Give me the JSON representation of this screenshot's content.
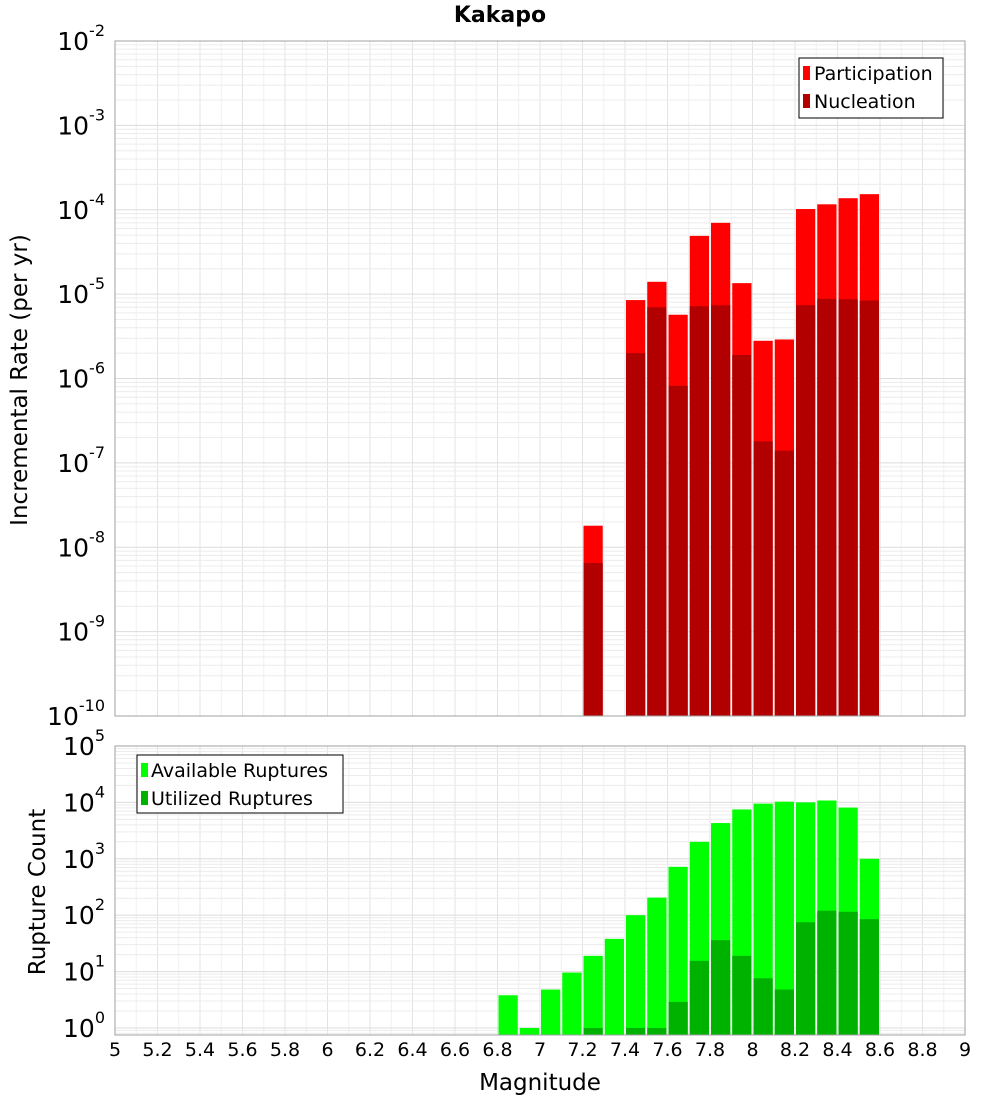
{
  "chart_data": [
    {
      "type": "bar",
      "title": "Kakapo",
      "xlabel": "",
      "ylabel": "Incremental Rate (per yr)",
      "y_scale": "log",
      "ylim": [
        1e-10,
        0.01
      ],
      "xlim": [
        5,
        9
      ],
      "bin_width": 0.1,
      "grid": true,
      "legend_position": "top-right",
      "y_tick_exponents": [
        "-10",
        "-9",
        "-8",
        "-7",
        "-6",
        "-5",
        "-4",
        "-3",
        "-2"
      ],
      "x": [
        7.25,
        7.45,
        7.55,
        7.65,
        7.75,
        7.85,
        7.95,
        8.05,
        8.15,
        8.25,
        8.35,
        8.45,
        8.55
      ],
      "series": [
        {
          "name": "Participation",
          "color": "#ff0000",
          "values": [
            1.8e-08,
            8.5e-06,
            1.4e-05,
            5.7e-06,
            4.9e-05,
            7e-05,
            1.35e-05,
            2.8e-06,
            2.9e-06,
            0.000102,
            0.000116,
            0.000137,
            0.000153
          ]
        },
        {
          "name": "Nucleation",
          "color": "#b20000",
          "values": [
            6.5e-09,
            2e-06,
            7e-06,
            8.2e-07,
            7.2e-06,
            7.4e-06,
            1.9e-06,
            1.8e-07,
            1.4e-07,
            7.4e-06,
            8.8e-06,
            8.7e-06,
            8.4e-06
          ]
        }
      ]
    },
    {
      "type": "bar",
      "title": "",
      "xlabel": "Magnitude",
      "ylabel": "Rupture Count",
      "y_scale": "log",
      "ylim": [
        0.75,
        100000.0
      ],
      "xlim": [
        5,
        9
      ],
      "bin_width": 0.1,
      "grid": true,
      "legend_position": "top-left",
      "y_tick_exponents": [
        "0",
        "1",
        "2",
        "3",
        "4",
        "5"
      ],
      "x_ticks": [
        "5",
        "5.2",
        "5.4",
        "5.6",
        "5.8",
        "6",
        "6.2",
        "6.4",
        "6.6",
        "6.8",
        "7",
        "7.2",
        "7.4",
        "7.6",
        "7.8",
        "8",
        "8.2",
        "8.4",
        "8.6",
        "8.8",
        "9"
      ],
      "x": [
        6.85,
        6.95,
        7.05,
        7.15,
        7.25,
        7.35,
        7.45,
        7.55,
        7.65,
        7.75,
        7.85,
        7.95,
        8.05,
        8.15,
        8.25,
        8.35,
        8.45,
        8.55
      ],
      "series": [
        {
          "name": "Available Ruptures",
          "color": "#00ff00",
          "values": [
            3.8,
            1,
            4.8,
            9.6,
            19,
            38,
            100,
            205,
            720,
            2000,
            4300,
            7500,
            9500,
            10300,
            10000,
            10800,
            8100,
            1000
          ]
        },
        {
          "name": "Utilized Ruptures",
          "color": "#00b200",
          "values": [
            0,
            0,
            0,
            0,
            1,
            0,
            1,
            1,
            2.9,
            15.5,
            36,
            19,
            7.6,
            4.8,
            75,
            120,
            115,
            85
          ]
        }
      ]
    }
  ]
}
